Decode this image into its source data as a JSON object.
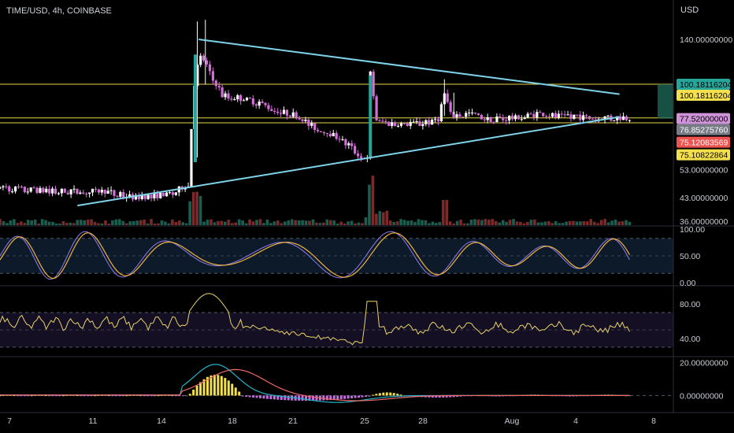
{
  "header": {
    "title": "TIME/USD, 4h, COINBASE",
    "currency": "USD"
  },
  "colors": {
    "background": "#000000",
    "up": "#26a69a",
    "down": "#ef5350",
    "candle_up": "#ffffff",
    "candle_down": "#d46fd8",
    "trendline": "#7fd3ea",
    "hline": "#e5d34a",
    "stoch_k": "#8e7cf0",
    "stoch_d": "#f2b33d",
    "rsi": "#e8d36b",
    "macd": "#27b3c8",
    "signal": "#f06a6a"
  },
  "chart_data": [
    {
      "type": "candlestick",
      "panel": "price",
      "y_scale": "log",
      "ylim": [
        35,
        165
      ],
      "x_ticks": [
        "7",
        "11",
        "14",
        "18",
        "21",
        "25",
        "28",
        "Aug",
        "4",
        "8"
      ],
      "y_ticks": [
        "140.00000000",
        "53.00000000",
        "43.00000000",
        "36.00000000"
      ],
      "price_tags": [
        {
          "label": "100.18116204",
          "value": 100.18,
          "bg": "#26a69a",
          "fg": "#000000"
        },
        {
          "label": "100.18116204",
          "value": 100.18,
          "bg": "#f4e04d",
          "fg": "#000000",
          "offset": 14
        },
        {
          "label": "77.52000000",
          "value": 77.52,
          "bg": "#ce93d8",
          "fg": "#000000"
        },
        {
          "label": "76.85275760",
          "value": 76.85,
          "bg": "#787b86",
          "fg": "#ffffff",
          "offset": 14
        },
        {
          "label": "75.12083569",
          "value": 75.12,
          "bg": "#ef5350",
          "fg": "#ffffff",
          "offset": 30
        },
        {
          "label": "75.10822864",
          "value": 75.11,
          "bg": "#f4e04d",
          "fg": "#000000",
          "offset": 46
        }
      ],
      "horizontal_lines": [
        100.18,
        77.9,
        75.11
      ],
      "trendlines": [
        {
          "x": [
            0.0,
            1.0
          ],
          "y": [
            40.5,
            78.5
          ],
          "t": [
            0.115,
            0.92
          ]
        },
        {
          "x": [
            0.0,
            1.0
          ],
          "y": [
            140,
            93
          ],
          "t": [
            0.295,
            0.92
          ]
        }
      ],
      "path_close": [
        [
          0,
          46
        ],
        [
          0.05,
          45.5
        ],
        [
          0.1,
          45
        ],
        [
          0.15,
          45.2
        ],
        [
          0.2,
          43
        ],
        [
          0.25,
          44
        ],
        [
          0.28,
          47.5
        ],
        [
          0.29,
          108
        ],
        [
          0.3,
          125
        ],
        [
          0.31,
          110
        ],
        [
          0.33,
          92
        ],
        [
          0.36,
          90
        ],
        [
          0.4,
          84
        ],
        [
          0.44,
          79
        ],
        [
          0.47,
          72
        ],
        [
          0.5,
          68
        ],
        [
          0.53,
          60
        ],
        [
          0.546,
          57
        ],
        [
          0.55,
          108
        ],
        [
          0.56,
          75
        ],
        [
          0.6,
          74
        ],
        [
          0.65,
          76
        ],
        [
          0.66,
          92
        ],
        [
          0.67,
          79
        ],
        [
          0.7,
          80
        ],
        [
          0.73,
          77
        ],
        [
          0.76,
          78
        ],
        [
          0.8,
          80
        ],
        [
          0.85,
          78.5
        ],
        [
          0.88,
          78
        ],
        [
          0.92,
          77.5
        ]
      ]
    },
    {
      "type": "line",
      "panel": "stochastic",
      "ylim": [
        0,
        100
      ],
      "y_ticks": [
        "100.00",
        "50.00",
        "0.00"
      ],
      "band": [
        20,
        80
      ]
    },
    {
      "type": "line",
      "panel": "rsi",
      "ylim": [
        20,
        100
      ],
      "y_ticks": [
        "80.00",
        "40.00"
      ],
      "band": [
        30,
        70
      ]
    },
    {
      "type": "histogram+line",
      "panel": "macd",
      "ylim": [
        -8,
        22
      ],
      "y_ticks": [
        "20.00000000",
        "0.00000000"
      ]
    }
  ]
}
